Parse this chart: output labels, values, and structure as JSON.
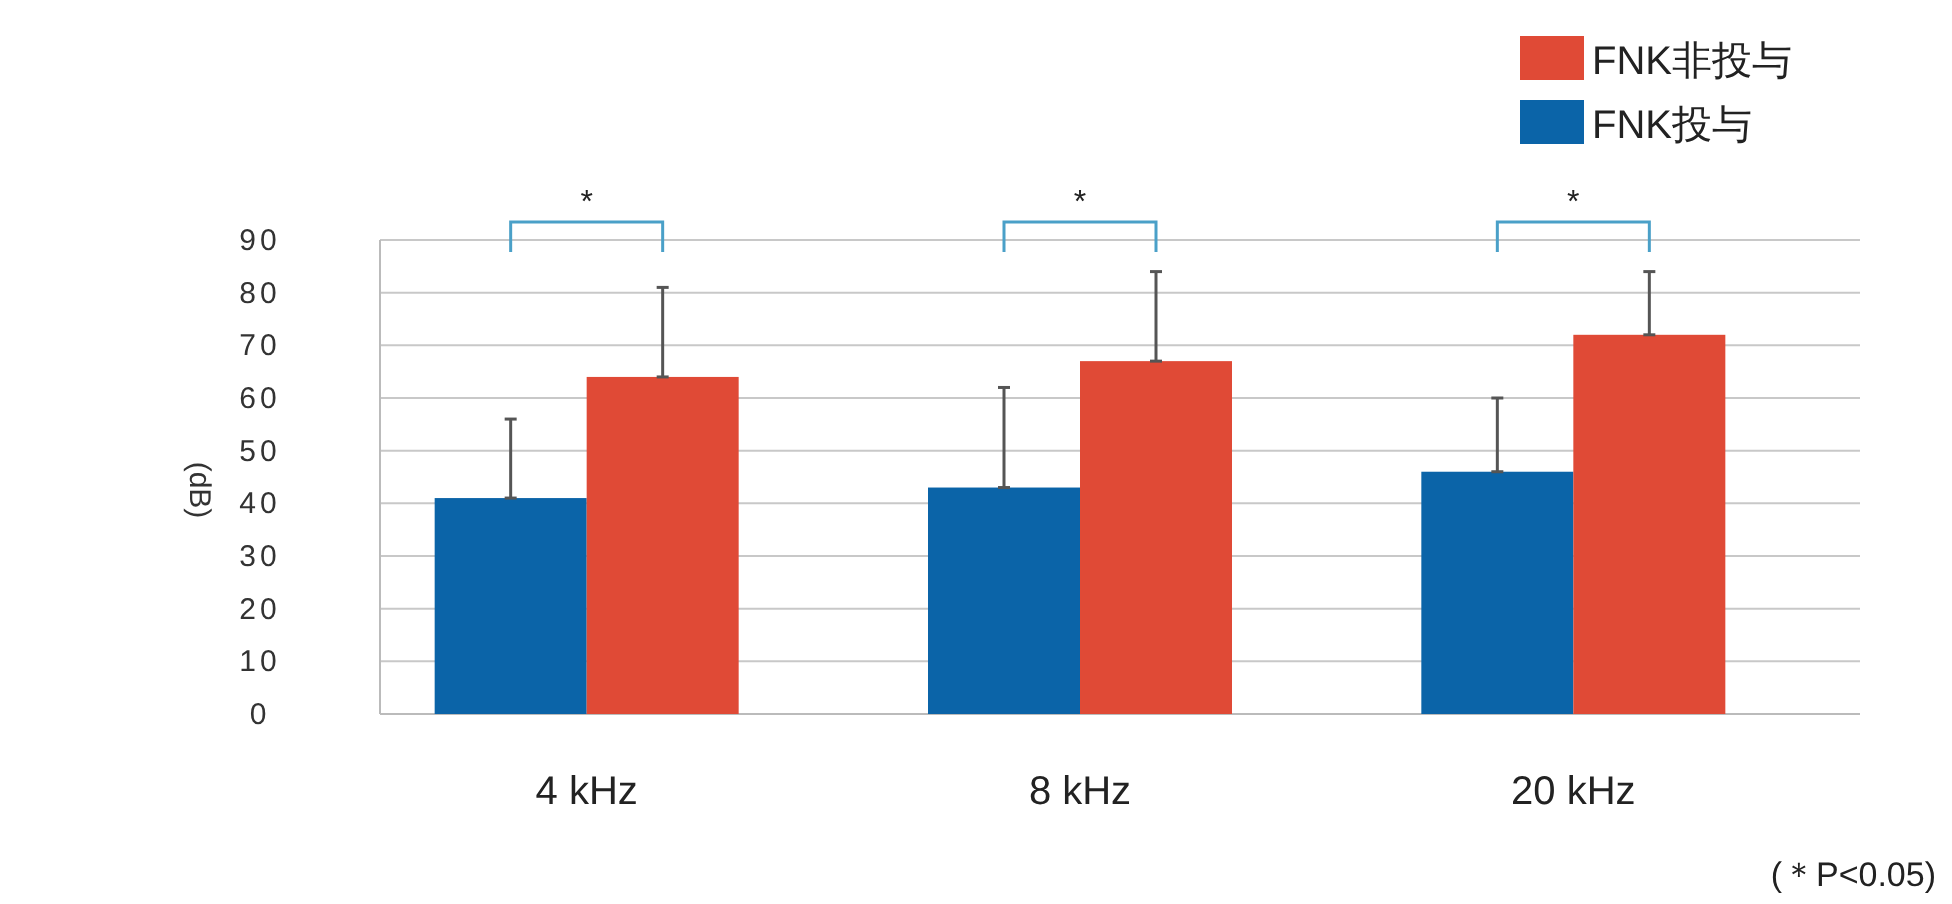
{
  "chart_data": {
    "type": "bar",
    "ylabel": "(dB)",
    "categories": [
      "4 kHz",
      "8 kHz",
      "20 kHz"
    ],
    "series": [
      {
        "name": "FNK投与",
        "color": "#0b64a8",
        "values": [
          41,
          43,
          46
        ],
        "errors": [
          [
            41,
            56
          ],
          [
            43,
            62
          ],
          [
            46,
            60
          ]
        ]
      },
      {
        "name": "FNK非投与",
        "color": "#e04a36",
        "values": [
          64,
          67,
          72
        ],
        "errors": [
          [
            64,
            81
          ],
          [
            67,
            84
          ],
          [
            72,
            84
          ]
        ]
      }
    ],
    "ylim": [
      0,
      90
    ],
    "yticks": [
      0,
      10,
      20,
      30,
      40,
      50,
      60,
      70,
      80,
      90
    ],
    "grid": "y",
    "legend": "top right",
    "annotations": [
      "*",
      "*",
      "*",
      "(＊P<0.05)"
    ]
  }
}
